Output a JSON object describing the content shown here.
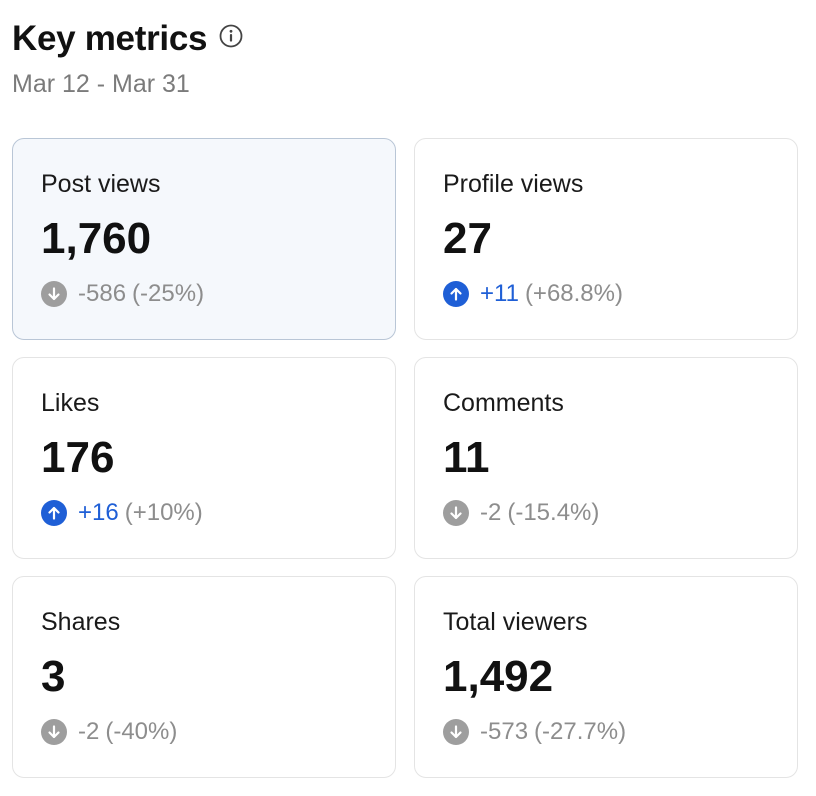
{
  "header": {
    "title": "Key metrics",
    "date_range": "Mar 12 - Mar 31"
  },
  "metrics": [
    {
      "label": "Post views",
      "value": "1,760",
      "delta": "-586",
      "pct": "(-25%)",
      "direction": "down",
      "selected": true
    },
    {
      "label": "Profile views",
      "value": "27",
      "delta": "+11",
      "pct": "(+68.8%)",
      "direction": "up",
      "selected": false
    },
    {
      "label": "Likes",
      "value": "176",
      "delta": "+16",
      "pct": "(+10%)",
      "direction": "up",
      "selected": false
    },
    {
      "label": "Comments",
      "value": "11",
      "delta": "-2",
      "pct": "(-15.4%)",
      "direction": "down",
      "selected": false
    },
    {
      "label": "Shares",
      "value": "3",
      "delta": "-2",
      "pct": "(-40%)",
      "direction": "down",
      "selected": false
    },
    {
      "label": "Total viewers",
      "value": "1,492",
      "delta": "-573",
      "pct": "(-27.7%)",
      "direction": "down",
      "selected": false
    }
  ],
  "icons": {
    "info": "info-icon",
    "up": "arrow-up-circle-icon",
    "down": "arrow-down-circle-icon"
  },
  "colors": {
    "up": "#1f5fd6",
    "down": "#9e9e9e",
    "selected_card_bg": "#f5f8fc"
  }
}
